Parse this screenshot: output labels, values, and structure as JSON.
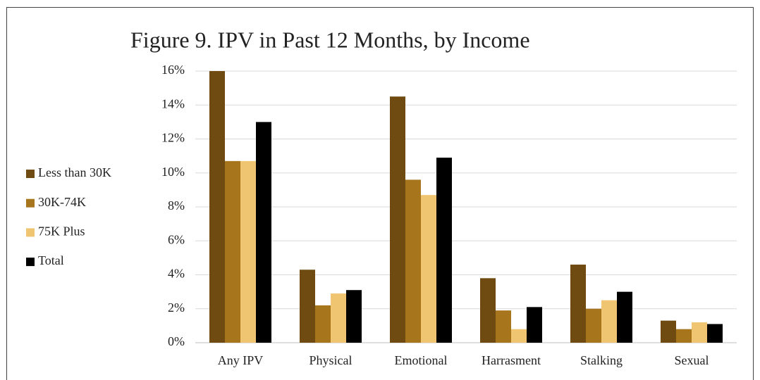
{
  "chart_data": {
    "type": "bar",
    "title": "Figure 9. IPV in Past 12 Months, by Income",
    "categories": [
      "Any IPV",
      "Physical",
      "Emotional",
      "Harrasment",
      "Stalking",
      "Sexual"
    ],
    "series": [
      {
        "name": "Less than 30K",
        "color": "#6f4b12",
        "values": [
          16.0,
          4.3,
          14.5,
          3.8,
          4.6,
          1.3
        ]
      },
      {
        "name": "30K-74K",
        "color": "#a6751c",
        "values": [
          10.7,
          2.2,
          9.6,
          1.9,
          2.0,
          0.8
        ]
      },
      {
        "name": "75K Plus",
        "color": "#f0c572",
        "values": [
          10.7,
          2.9,
          8.7,
          0.8,
          2.5,
          1.2
        ]
      },
      {
        "name": "Total",
        "color": "#000000",
        "values": [
          13.0,
          3.1,
          10.9,
          2.1,
          3.0,
          1.1
        ]
      }
    ],
    "ylim": [
      0,
      16
    ],
    "yticks": [
      {
        "value": 0,
        "label": "0%"
      },
      {
        "value": 2,
        "label": "2%"
      },
      {
        "value": 4,
        "label": "4%"
      },
      {
        "value": 6,
        "label": "6%"
      },
      {
        "value": 8,
        "label": "8%"
      },
      {
        "value": 10,
        "label": "10%"
      },
      {
        "value": 12,
        "label": "12%"
      },
      {
        "value": 14,
        "label": "14%"
      },
      {
        "value": 16,
        "label": "16%"
      }
    ],
    "grid": true,
    "legend": "left"
  }
}
